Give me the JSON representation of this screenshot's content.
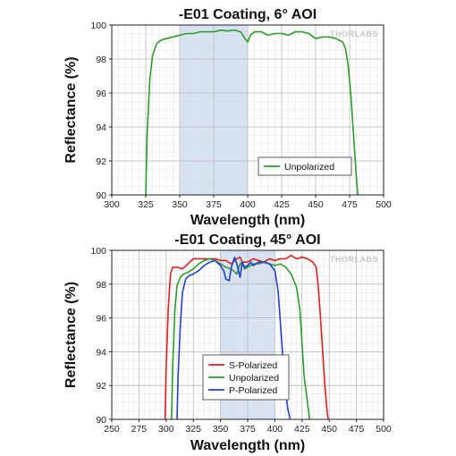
{
  "watermark": "THORLABS",
  "chart_data": [
    {
      "type": "line",
      "title": "-E01 Coating, 6° AOI",
      "xlabel": "Wavelength (nm)",
      "ylabel": "Reflectance (%)",
      "xlim": [
        300,
        500
      ],
      "ylim": [
        90,
        100
      ],
      "xticks": [
        300,
        325,
        350,
        375,
        400,
        425,
        450,
        475,
        500
      ],
      "yticks": [
        90,
        92,
        94,
        96,
        98,
        100
      ],
      "grid": true,
      "legend_position": "lower-right",
      "shaded_band": {
        "x": [
          350,
          400
        ],
        "color": "#d6e2f2"
      },
      "series": [
        {
          "name": "Unpolarized",
          "color": "#2a9d2a",
          "x": [
            325,
            326,
            328,
            330,
            333,
            336,
            340,
            345,
            350,
            355,
            360,
            365,
            370,
            375,
            380,
            385,
            390,
            395,
            398,
            400,
            402,
            405,
            410,
            415,
            420,
            425,
            430,
            435,
            440,
            445,
            450,
            455,
            460,
            465,
            470,
            472,
            474,
            476,
            478,
            480,
            481
          ],
          "y": [
            90,
            93.5,
            96.8,
            98.2,
            98.9,
            99.1,
            99.2,
            99.3,
            99.4,
            99.5,
            99.5,
            99.6,
            99.6,
            99.6,
            99.7,
            99.65,
            99.7,
            99.6,
            99.2,
            99.0,
            99.4,
            99.6,
            99.6,
            99.4,
            99.5,
            99.5,
            99.4,
            99.6,
            99.6,
            99.5,
            99.2,
            99.3,
            99.3,
            99.2,
            99.0,
            98.6,
            97.6,
            95.8,
            93.4,
            91.0,
            90
          ]
        }
      ]
    },
    {
      "type": "line",
      "title": "-E01 Coating, 45° AOI",
      "xlabel": "Wavelength (nm)",
      "ylabel": "Reflectance (%)",
      "xlim": [
        250,
        500
      ],
      "ylim": [
        90,
        100
      ],
      "xticks": [
        250,
        275,
        300,
        325,
        350,
        375,
        400,
        425,
        450,
        475,
        500
      ],
      "yticks": [
        90,
        92,
        94,
        96,
        98,
        100
      ],
      "grid": true,
      "legend_position": "lower-center",
      "shaded_band": {
        "x": [
          350,
          400
        ],
        "color": "#d6e2f2"
      },
      "series": [
        {
          "name": "S-Polarized",
          "color": "#e02020",
          "x": [
            299,
            300,
            302,
            304,
            306,
            310,
            315,
            320,
            325,
            330,
            335,
            340,
            345,
            350,
            355,
            360,
            365,
            368,
            370,
            375,
            380,
            385,
            390,
            395,
            400,
            405,
            410,
            415,
            420,
            425,
            430,
            435,
            438,
            440,
            442,
            444,
            446,
            448,
            449
          ],
          "y": [
            90,
            93,
            96.6,
            98.6,
            99.0,
            99.0,
            98.9,
            99.2,
            99.5,
            99.5,
            99.5,
            99.5,
            99.5,
            99.4,
            99.4,
            99.2,
            99.5,
            99.6,
            99.3,
            99.3,
            99.5,
            99.4,
            99.3,
            99.5,
            99.4,
            99.5,
            99.5,
            99.7,
            99.5,
            99.6,
            99.5,
            99.3,
            99.0,
            97.8,
            96.0,
            94.0,
            92.0,
            90.5,
            90
          ]
        },
        {
          "name": "Unpolarized",
          "color": "#2a9d2a",
          "x": [
            305,
            306,
            308,
            310,
            313,
            316,
            320,
            325,
            330,
            335,
            340,
            345,
            350,
            355,
            360,
            365,
            368,
            370,
            372,
            375,
            380,
            385,
            390,
            395,
            400,
            405,
            410,
            415,
            420,
            423,
            425,
            427,
            430,
            432
          ],
          "y": [
            90,
            93,
            96.4,
            97.9,
            98.4,
            98.6,
            98.7,
            98.9,
            99.2,
            99.4,
            99.5,
            99.4,
            99.2,
            99.0,
            98.9,
            98.6,
            99.2,
            99.3,
            98.9,
            99.0,
            99.2,
            99.2,
            99.3,
            99.2,
            99.1,
            99.2,
            99.0,
            98.6,
            97.8,
            96.5,
            94.5,
            92.5,
            91.0,
            90
          ]
        },
        {
          "name": "P-Polarized",
          "color": "#2040d0",
          "x": [
            310,
            311,
            313,
            315,
            318,
            321,
            325,
            330,
            335,
            340,
            345,
            350,
            353,
            355,
            358,
            360,
            363,
            365,
            368,
            370,
            372,
            375,
            378,
            380,
            385,
            390,
            395,
            400,
            403,
            405,
            407,
            409,
            410,
            412,
            414
          ],
          "y": [
            90,
            92.5,
            95.5,
            97.5,
            98.3,
            98.5,
            98.6,
            98.8,
            99.1,
            99.3,
            99.4,
            99.1,
            98.8,
            98.3,
            98.2,
            99.0,
            99.6,
            99.2,
            98.4,
            99.3,
            99.0,
            99.1,
            99.3,
            99.1,
            99.3,
            99.3,
            99.2,
            98.8,
            97.6,
            95.8,
            94.0,
            92.3,
            91.5,
            90.6,
            90
          ]
        }
      ]
    }
  ]
}
